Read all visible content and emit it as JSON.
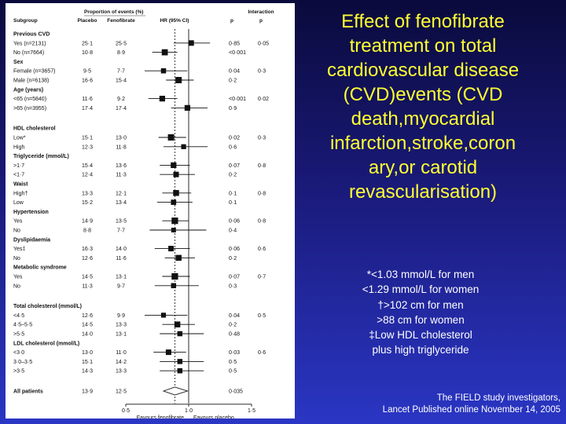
{
  "title": "Effect of fenofibrate treatment on total cardiovascular disease (CVD)events (CVD death,myocardial infarction,stroke,coronary,or carotid revascularisation)",
  "title_lines": [
    "Effect of fenofibrate",
    "treatment on total",
    "cardiovascular disease",
    "(CVD)events (CVD",
    "death,myocardial",
    "infarction,stroke,coron",
    "ary,or carotid",
    "revascularisation)"
  ],
  "footnotes": [
    "*<1.03 mmol/L for men",
    "<1.29 mmol/L for women",
    "†>102 cm for men",
    ">88 cm for women",
    "‡Low HDL cholesterol",
    "plus high triglyceride"
  ],
  "citation": [
    "The FIELD study investigators,",
    "Lancet  Published online November 14, 2005"
  ],
  "colors": {
    "title": "#ffff33",
    "text": "#ffffff",
    "panel": "#ffffff",
    "marker": "#111111"
  },
  "chart_data": {
    "type": "forest",
    "headers": {
      "proportion": "Proportion of events (%)",
      "subgroup": "Subgroup",
      "placebo": "Placebo",
      "fenofibrate": "Fenofibrate",
      "hr": "HR (95% CI)",
      "p": "p",
      "interaction": "Interaction",
      "interaction_p": "p"
    },
    "xaxis": {
      "min": 0.5,
      "max": 1.5,
      "ticks": [
        "0·5",
        "1·0",
        "1·5"
      ],
      "tick_values": [
        0.5,
        1.0,
        1.5
      ],
      "reference": 1.0,
      "dashed_line_at": 0.89
    },
    "xlabels": [
      "Favours fenofibrate",
      "Favours placebo"
    ],
    "rows": [
      {
        "kind": "header",
        "label": "Previous CVD"
      },
      {
        "kind": "data",
        "label": "Yes (n=2131)",
        "placebo": "25·1",
        "fenofibrate": "25·5",
        "p": "0·85",
        "pint": "0·05",
        "hr": 1.02,
        "lo": 0.88,
        "hi": 1.17,
        "w": 0.6
      },
      {
        "kind": "data",
        "label": "No (n=7664)",
        "placebo": "10·8",
        "fenofibrate": "8·9",
        "p": "<0·001",
        "pint": "",
        "hr": 0.81,
        "lo": 0.71,
        "hi": 0.91,
        "w": 0.75
      },
      {
        "kind": "header",
        "label": "Sex"
      },
      {
        "kind": "data",
        "label": "Female (n=3657)",
        "placebo": "9·5",
        "fenofibrate": "7·7",
        "p": "0·04",
        "pint": "0·3",
        "hr": 0.8,
        "lo": 0.65,
        "hi": 0.99,
        "w": 0.5
      },
      {
        "kind": "data",
        "label": "Male (n=6138)",
        "placebo": "16·6",
        "fenofibrate": "15·4",
        "p": "0·2",
        "pint": "",
        "hr": 0.92,
        "lo": 0.82,
        "hi": 1.04,
        "w": 0.8
      },
      {
        "kind": "header",
        "label": "Age (years)"
      },
      {
        "kind": "data",
        "label": "<65 (n=5840)",
        "placebo": "11·6",
        "fenofibrate": "9·2",
        "p": "<0·001",
        "pint": "0·02",
        "hr": 0.79,
        "lo": 0.68,
        "hi": 0.91,
        "w": 0.65
      },
      {
        "kind": "data",
        "label": ">65 (n=3955)",
        "placebo": "17·4",
        "fenofibrate": "17·4",
        "p": "0·9",
        "pint": "",
        "hr": 0.99,
        "lo": 0.86,
        "hi": 1.15,
        "w": 0.65
      },
      {
        "kind": "gap"
      },
      {
        "kind": "header",
        "label": "HDL cholesterol"
      },
      {
        "kind": "data",
        "label": "Low*",
        "placebo": "15·1",
        "fenofibrate": "13·0",
        "p": "0·02",
        "pint": "0·3",
        "hr": 0.86,
        "lo": 0.76,
        "hi": 0.98,
        "w": 0.8
      },
      {
        "kind": "data",
        "label": "High",
        "placebo": "12·3",
        "fenofibrate": "11·8",
        "p": "0·6",
        "pint": "",
        "hr": 0.96,
        "lo": 0.8,
        "hi": 1.15,
        "w": 0.45
      },
      {
        "kind": "header",
        "label": "Triglyceride (mmol/L)"
      },
      {
        "kind": "data",
        "label": ">1·7",
        "placebo": "15·4",
        "fenofibrate": "13·6",
        "p": "0·07",
        "pint": "0·8",
        "hr": 0.88,
        "lo": 0.77,
        "hi": 1.01,
        "w": 0.65
      },
      {
        "kind": "data",
        "label": "<1·7",
        "placebo": "12·4",
        "fenofibrate": "11·3",
        "p": "0·2",
        "pint": "",
        "hr": 0.9,
        "lo": 0.77,
        "hi": 1.05,
        "w": 0.6
      },
      {
        "kind": "header",
        "label": "Waist"
      },
      {
        "kind": "data",
        "label": "High†",
        "placebo": "13·3",
        "fenofibrate": "12·1",
        "p": "0·1",
        "pint": "0·8",
        "hr": 0.9,
        "lo": 0.79,
        "hi": 1.02,
        "w": 0.7
      },
      {
        "kind": "data",
        "label": "Low",
        "placebo": "15·2",
        "fenofibrate": "13·4",
        "p": "0·1",
        "pint": "",
        "hr": 0.88,
        "lo": 0.75,
        "hi": 1.03,
        "w": 0.55
      },
      {
        "kind": "header",
        "label": "Hypertension"
      },
      {
        "kind": "data",
        "label": "Yes",
        "placebo": "14·9",
        "fenofibrate": "13·5",
        "p": "0·06",
        "pint": "0·8",
        "hr": 0.89,
        "lo": 0.79,
        "hi": 1.0,
        "w": 0.85
      },
      {
        "kind": "data",
        "label": "No",
        "placebo": "8·8",
        "fenofibrate": "7·7",
        "p": "0·4",
        "pint": "",
        "hr": 0.88,
        "lo": 0.69,
        "hi": 1.14,
        "w": 0.4
      },
      {
        "kind": "header",
        "label": "Dyslipidaemia"
      },
      {
        "kind": "data",
        "label": "Yes‡",
        "placebo": "16·3",
        "fenofibrate": "14·0",
        "p": "0·06",
        "pint": "0·6",
        "hr": 0.86,
        "lo": 0.73,
        "hi": 1.01,
        "w": 0.6
      },
      {
        "kind": "data",
        "label": "No",
        "placebo": "12·6",
        "fenofibrate": "11·6",
        "p": "0·2",
        "pint": "",
        "hr": 0.92,
        "lo": 0.81,
        "hi": 1.05,
        "w": 0.7
      },
      {
        "kind": "header",
        "label": "Metabolic syndrome"
      },
      {
        "kind": "data",
        "label": "Yes",
        "placebo": "14·5",
        "fenofibrate": "13·1",
        "p": "0·07",
        "pint": "0·7",
        "hr": 0.89,
        "lo": 0.79,
        "hi": 1.01,
        "w": 0.85
      },
      {
        "kind": "data",
        "label": "No",
        "placebo": "11·3",
        "fenofibrate": "9·7",
        "p": "0·3",
        "pint": "",
        "hr": 0.88,
        "lo": 0.73,
        "hi": 1.08,
        "w": 0.5
      },
      {
        "kind": "gap"
      },
      {
        "kind": "header",
        "label": "Total cholesterol (mmol/L)"
      },
      {
        "kind": "data",
        "label": "<4·5",
        "placebo": "12·6",
        "fenofibrate": "9·9",
        "p": "0·04",
        "pint": "0·5",
        "hr": 0.8,
        "lo": 0.65,
        "hi": 0.99,
        "w": 0.45
      },
      {
        "kind": "data",
        "label": "4·5–5·5",
        "placebo": "14·5",
        "fenofibrate": "13·3",
        "p": "0·2",
        "pint": "",
        "hr": 0.91,
        "lo": 0.79,
        "hi": 1.05,
        "w": 0.7
      },
      {
        "kind": "data",
        "label": ">5·5",
        "placebo": "14·0",
        "fenofibrate": "13·1",
        "p": "0·48",
        "pint": "",
        "hr": 0.93,
        "lo": 0.77,
        "hi": 1.12,
        "w": 0.5
      },
      {
        "kind": "header",
        "label": "LDL cholesterol (mmol/L)"
      },
      {
        "kind": "data",
        "label": "<3·0",
        "placebo": "13·0",
        "fenofibrate": "11·0",
        "p": "0·03",
        "pint": "0·6",
        "hr": 0.84,
        "lo": 0.72,
        "hi": 0.98,
        "w": 0.6
      },
      {
        "kind": "data",
        "label": "3·0–3·5",
        "placebo": "15·1",
        "fenofibrate": "14·2",
        "p": "0·5",
        "pint": "",
        "hr": 0.93,
        "lo": 0.77,
        "hi": 1.12,
        "w": 0.5
      },
      {
        "kind": "data",
        "label": ">3·5",
        "placebo": "14·3",
        "fenofibrate": "13·3",
        "p": "0·5",
        "pint": "",
        "hr": 0.93,
        "lo": 0.77,
        "hi": 1.12,
        "w": 0.5
      },
      {
        "kind": "gap"
      },
      {
        "kind": "overall",
        "label": "All patients",
        "placebo": "13·9",
        "fenofibrate": "12·5",
        "p": "0·035",
        "pint": "",
        "hr": 0.89,
        "lo": 0.8,
        "hi": 0.99
      }
    ]
  }
}
